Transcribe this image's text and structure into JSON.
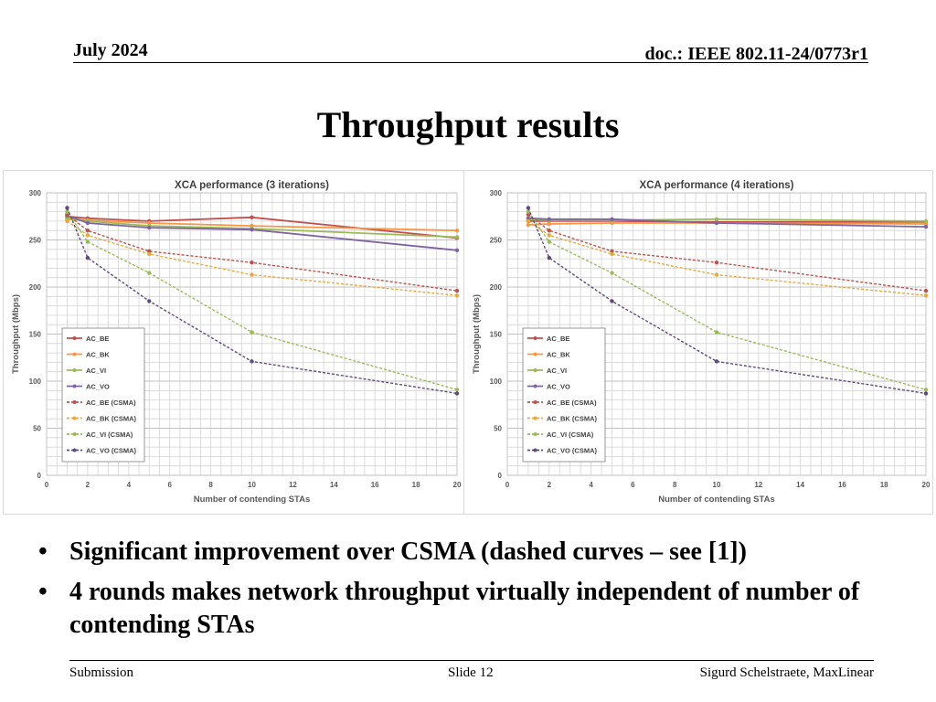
{
  "header": {
    "date": "July 2024",
    "doc": "doc.: IEEE 802.11-24/0773r1"
  },
  "title": "Throughput results",
  "bullets": [
    "Significant improvement over CSMA (dashed curves – see [1])",
    "4 rounds makes network throughput virtually independent of number of contending STAs"
  ],
  "bullet_glyph": "•",
  "footer": {
    "left": "Submission",
    "center": "Slide 12",
    "right": "Sigurd Schelstraete, MaxLinear"
  },
  "chart_data": [
    {
      "type": "line",
      "title": "XCA performance (3 iterations)",
      "xlabel": "Number of contending STAs",
      "ylabel": "Throughput (Mbps)",
      "xlim": [
        0,
        20
      ],
      "ylim": [
        0,
        300
      ],
      "xticks": [
        0,
        2,
        4,
        6,
        8,
        10,
        12,
        14,
        16,
        18,
        20
      ],
      "yticks": [
        0,
        50,
        100,
        150,
        200,
        250,
        300
      ],
      "grid": true,
      "legend_position": "left-bottom",
      "x": [
        1,
        2,
        5,
        10,
        20
      ],
      "series": [
        {
          "name": "AC_BE",
          "color": "#c0504d",
          "dashed": false,
          "values": [
            275,
            273,
            270,
            274,
            252
          ]
        },
        {
          "name": "AC_BK",
          "color": "#f79646",
          "dashed": false,
          "values": [
            272,
            271,
            268,
            265,
            260
          ]
        },
        {
          "name": "AC_VI",
          "color": "#9bbb59",
          "dashed": false,
          "values": [
            273,
            270,
            265,
            262,
            253
          ]
        },
        {
          "name": "AC_VO",
          "color": "#8064a2",
          "dashed": false,
          "values": [
            276,
            268,
            263,
            261,
            239
          ]
        },
        {
          "name": "AC_BE (CSMA)",
          "color": "#c0504d",
          "dashed": true,
          "values": [
            277,
            260,
            238,
            226,
            196
          ]
        },
        {
          "name": "AC_BK (CSMA)",
          "color": "#e8a93c",
          "dashed": true,
          "values": [
            270,
            255,
            235,
            213,
            191
          ]
        },
        {
          "name": "AC_VI (CSMA)",
          "color": "#9bbb59",
          "dashed": true,
          "values": [
            280,
            248,
            215,
            152,
            91
          ]
        },
        {
          "name": "AC_VO (CSMA)",
          "color": "#604a7b",
          "dashed": true,
          "values": [
            284,
            231,
            185,
            121,
            87
          ]
        }
      ]
    },
    {
      "type": "line",
      "title": "XCA performance (4 iterations)",
      "xlabel": "Number of contending STAs",
      "ylabel": "Throughput (Mbps)",
      "xlim": [
        0,
        20
      ],
      "ylim": [
        0,
        300
      ],
      "xticks": [
        0,
        2,
        4,
        6,
        8,
        10,
        12,
        14,
        16,
        18,
        20
      ],
      "yticks": [
        0,
        50,
        100,
        150,
        200,
        250,
        300
      ],
      "grid": true,
      "legend_position": "left-bottom",
      "x": [
        1,
        2,
        5,
        10,
        20
      ],
      "series": [
        {
          "name": "AC_BE",
          "color": "#c0504d",
          "dashed": false,
          "values": [
            270,
            270,
            270,
            269,
            269
          ]
        },
        {
          "name": "AC_BK",
          "color": "#f79646",
          "dashed": false,
          "values": [
            266,
            267,
            268,
            268,
            267
          ]
        },
        {
          "name": "AC_VI",
          "color": "#9bbb59",
          "dashed": false,
          "values": [
            272,
            271,
            271,
            272,
            270
          ]
        },
        {
          "name": "AC_VO",
          "color": "#8064a2",
          "dashed": false,
          "values": [
            273,
            272,
            272,
            268,
            264
          ]
        },
        {
          "name": "AC_BE (CSMA)",
          "color": "#c0504d",
          "dashed": true,
          "values": [
            277,
            260,
            238,
            226,
            196
          ]
        },
        {
          "name": "AC_BK (CSMA)",
          "color": "#e8a93c",
          "dashed": true,
          "values": [
            270,
            255,
            235,
            213,
            191
          ]
        },
        {
          "name": "AC_VI (CSMA)",
          "color": "#9bbb59",
          "dashed": true,
          "values": [
            280,
            248,
            215,
            152,
            91
          ]
        },
        {
          "name": "AC_VO (CSMA)",
          "color": "#604a7b",
          "dashed": true,
          "values": [
            284,
            231,
            185,
            121,
            87
          ]
        }
      ]
    }
  ]
}
